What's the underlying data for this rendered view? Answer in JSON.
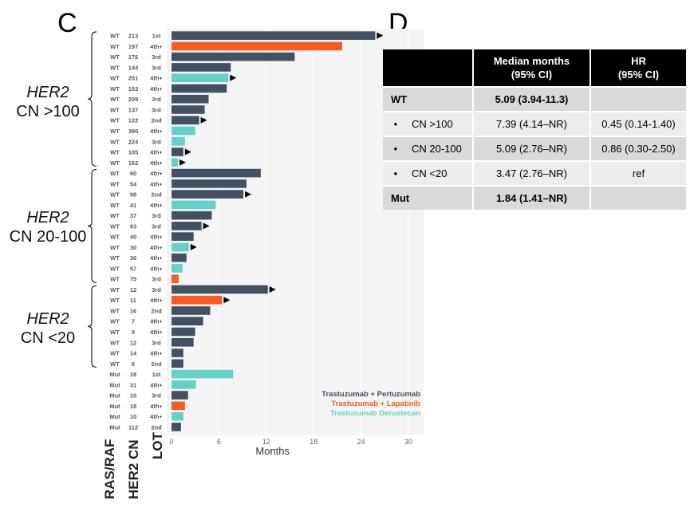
{
  "panels": {
    "c_label": "C",
    "d_label": "D"
  },
  "groups": [
    {
      "her2": "HER2",
      "cn": "CN >100"
    },
    {
      "her2": "HER2",
      "cn": "CN 20-100"
    },
    {
      "her2": "HER2",
      "cn": "CN <20"
    }
  ],
  "bottom_labels": {
    "rasraf": "RAS/RAF",
    "her2cn": "HER2 CN",
    "lot": "LOT"
  },
  "colors": {
    "tp": "#435062",
    "tl": "#fa5a1e",
    "td": "#62d1c8"
  },
  "chart_data": {
    "type": "bar",
    "orientation": "horizontal",
    "xlabel": "Months",
    "xlim": [
      0,
      30
    ],
    "xticks": [
      0,
      6,
      12,
      18,
      24,
      30
    ],
    "legend": [
      {
        "key": "tp",
        "label": "Trastuzumab + Pertuzumab"
      },
      {
        "key": "tl",
        "label": "Trastuzumab + Lapatinib"
      },
      {
        "key": "td",
        "label": "Trastuzumab Deruxtecan"
      }
    ],
    "rows": [
      {
        "ras": "WT",
        "cn": "213",
        "lot": "1st",
        "months": 25.8,
        "tx": "tp",
        "ongoing": true
      },
      {
        "ras": "WT",
        "cn": "197",
        "lot": "4th+",
        "months": 21.6,
        "tx": "tl",
        "ongoing": false
      },
      {
        "ras": "WT",
        "cn": "176",
        "lot": "3rd",
        "months": 15.6,
        "tx": "tp",
        "ongoing": false
      },
      {
        "ras": "WT",
        "cn": "144",
        "lot": "3rd",
        "months": 7.5,
        "tx": "tp",
        "ongoing": false
      },
      {
        "ras": "WT",
        "cn": "251",
        "lot": "4th+",
        "months": 7.2,
        "tx": "td",
        "ongoing": true
      },
      {
        "ras": "WT",
        "cn": "153",
        "lot": "4th+",
        "months": 7.0,
        "tx": "tp",
        "ongoing": false
      },
      {
        "ras": "WT",
        "cn": "209",
        "lot": "3rd",
        "months": 4.7,
        "tx": "tp",
        "ongoing": false
      },
      {
        "ras": "WT",
        "cn": "137",
        "lot": "3rd",
        "months": 4.2,
        "tx": "tp",
        "ongoing": false
      },
      {
        "ras": "WT",
        "cn": "122",
        "lot": "2nd",
        "months": 3.5,
        "tx": "tp",
        "ongoing": true
      },
      {
        "ras": "WT",
        "cn": "390",
        "lot": "4th+",
        "months": 3.0,
        "tx": "td",
        "ongoing": false
      },
      {
        "ras": "WT",
        "cn": "224",
        "lot": "3rd",
        "months": 1.7,
        "tx": "td",
        "ongoing": false
      },
      {
        "ras": "WT",
        "cn": "105",
        "lot": "4th+",
        "months": 1.5,
        "tx": "tp",
        "ongoing": true
      },
      {
        "ras": "WT",
        "cn": "162",
        "lot": "4th+",
        "months": 0.8,
        "tx": "td",
        "ongoing": true
      },
      {
        "ras": "WT",
        "cn": "90",
        "lot": "4th+",
        "months": 11.3,
        "tx": "tp",
        "ongoing": false
      },
      {
        "ras": "WT",
        "cn": "54",
        "lot": "4th+",
        "months": 9.5,
        "tx": "tp",
        "ongoing": false
      },
      {
        "ras": "WT",
        "cn": "98",
        "lot": "2nd",
        "months": 9.1,
        "tx": "tp",
        "ongoing": true
      },
      {
        "ras": "WT",
        "cn": "41",
        "lot": "4th+",
        "months": 5.6,
        "tx": "td",
        "ongoing": false
      },
      {
        "ras": "WT",
        "cn": "37",
        "lot": "3rd",
        "months": 5.1,
        "tx": "tp",
        "ongoing": false
      },
      {
        "ras": "WT",
        "cn": "93",
        "lot": "3rd",
        "months": 3.8,
        "tx": "tp",
        "ongoing": true
      },
      {
        "ras": "WT",
        "cn": "40",
        "lot": "4th+",
        "months": 2.8,
        "tx": "tp",
        "ongoing": false
      },
      {
        "ras": "WT",
        "cn": "30",
        "lot": "4th+",
        "months": 2.2,
        "tx": "td",
        "ongoing": true
      },
      {
        "ras": "WT",
        "cn": "36",
        "lot": "4th+",
        "months": 1.9,
        "tx": "tp",
        "ongoing": false
      },
      {
        "ras": "WT",
        "cn": "57",
        "lot": "4th+",
        "months": 1.4,
        "tx": "td",
        "ongoing": false
      },
      {
        "ras": "WT",
        "cn": "75",
        "lot": "3rd",
        "months": 0.9,
        "tx": "tl",
        "ongoing": false
      },
      {
        "ras": "WT",
        "cn": "12",
        "lot": "3rd",
        "months": 12.2,
        "tx": "tp",
        "ongoing": true
      },
      {
        "ras": "WT",
        "cn": "11",
        "lot": "4th+",
        "months": 6.4,
        "tx": "tl",
        "ongoing": true
      },
      {
        "ras": "WT",
        "cn": "16",
        "lot": "2nd",
        "months": 4.9,
        "tx": "tp",
        "ongoing": false
      },
      {
        "ras": "WT",
        "cn": "7",
        "lot": "4th+",
        "months": 4.0,
        "tx": "tp",
        "ongoing": false
      },
      {
        "ras": "WT",
        "cn": "9",
        "lot": "4th+",
        "months": 3.0,
        "tx": "tp",
        "ongoing": false
      },
      {
        "ras": "WT",
        "cn": "12",
        "lot": "3rd",
        "months": 2.8,
        "tx": "tp",
        "ongoing": false
      },
      {
        "ras": "WT",
        "cn": "14",
        "lot": "4th+",
        "months": 1.5,
        "tx": "tp",
        "ongoing": false
      },
      {
        "ras": "WT",
        "cn": "6",
        "lot": "2nd",
        "months": 1.5,
        "tx": "tp",
        "ongoing": false
      },
      {
        "ras": "Mut",
        "cn": "18",
        "lot": "1st",
        "months": 7.8,
        "tx": "td",
        "ongoing": false
      },
      {
        "ras": "Mut",
        "cn": "31",
        "lot": "4th+",
        "months": 3.1,
        "tx": "td",
        "ongoing": false
      },
      {
        "ras": "Mut",
        "cn": "10",
        "lot": "3rd",
        "months": 2.1,
        "tx": "tp",
        "ongoing": false
      },
      {
        "ras": "Mut",
        "cn": "18",
        "lot": "4th+",
        "months": 1.7,
        "tx": "tl",
        "ongoing": false
      },
      {
        "ras": "Mut",
        "cn": "10",
        "lot": "4th+",
        "months": 1.5,
        "tx": "td",
        "ongoing": false
      },
      {
        "ras": "Mut",
        "cn": "112",
        "lot": "2nd",
        "months": 1.2,
        "tx": "tp",
        "ongoing": false
      }
    ]
  },
  "table": {
    "headers": [
      "",
      "Median months\n(95% CI)",
      "HR\n(95% CI)"
    ],
    "header_line1": [
      "Median months",
      "HR"
    ],
    "header_line2": [
      "(95% CI)",
      "(95% CI)"
    ],
    "rows": [
      {
        "label": "WT",
        "median": "5.09 (3.94-11.3)",
        "hr": ""
      },
      {
        "label": "CN >100",
        "median": "7.39 (4.14–NR)",
        "hr": "0.45 (0.14-1.40)"
      },
      {
        "label": "CN 20-100",
        "median": "5.09 (2.76–NR)",
        "hr": "0.86 (0.30-2.50)"
      },
      {
        "label": "CN <20",
        "median": "3.47 (2.76–NR)",
        "hr": "ref"
      },
      {
        "label": "Mut",
        "median": "1.84 (1.41–NR)",
        "hr": ""
      }
    ]
  }
}
